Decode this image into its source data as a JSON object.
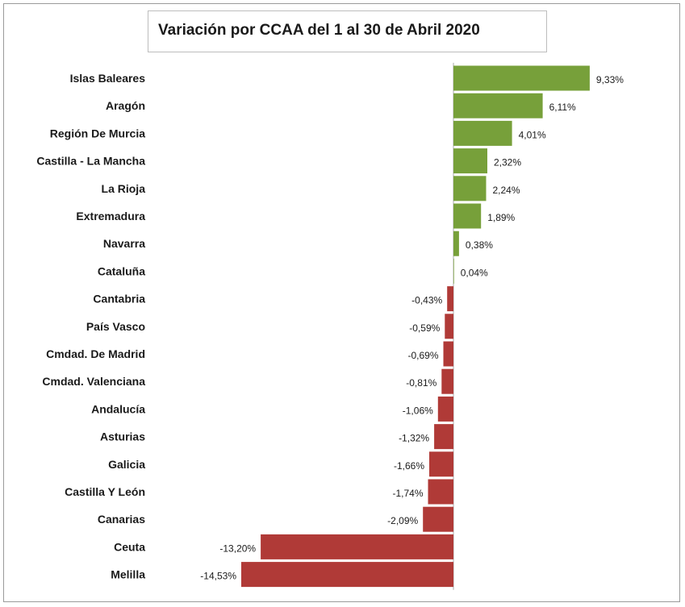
{
  "chart_data": {
    "type": "bar",
    "orientation": "horizontal",
    "title": "Variación por CCAA del 1 al 30 de Abril 2020",
    "categories": [
      "Islas Baleares",
      "Aragón",
      "Región De Murcia",
      "Castilla - La Mancha",
      "La Rioja",
      "Extremadura",
      "Navarra",
      "Cataluña",
      "Cantabria",
      "País Vasco",
      "Cmdad. De Madrid",
      "Cmdad. Valenciana",
      "Andalucía",
      "Asturias",
      "Galicia",
      "Castilla Y León",
      "Canarias",
      "Ceuta",
      "Melilla"
    ],
    "values": [
      9.33,
      6.11,
      4.01,
      2.32,
      2.24,
      1.89,
      0.38,
      0.04,
      -0.43,
      -0.59,
      -0.69,
      -0.81,
      -1.06,
      -1.32,
      -1.66,
      -1.74,
      -2.09,
      -13.2,
      -14.53
    ],
    "value_labels": [
      "9,33%",
      "6,11%",
      "4,01%",
      "2,32%",
      "2,24%",
      "1,89%",
      "0,38%",
      "0,04%",
      "-0,43%",
      "-0,59%",
      "-0,69%",
      "-0,81%",
      "-1,06%",
      "-1,32%",
      "-1,66%",
      "-1,74%",
      "-2,09%",
      "-13,20%",
      "-14,53%"
    ],
    "colors": {
      "positive": "#77a03a",
      "negative": "#b03a37",
      "zero_line": "#aaaaaa",
      "frame": "#9a9a9a"
    },
    "xlabel": "",
    "ylabel": "",
    "xlim": [
      -15.0,
      10.5
    ],
    "grid": false,
    "legend": "none"
  }
}
